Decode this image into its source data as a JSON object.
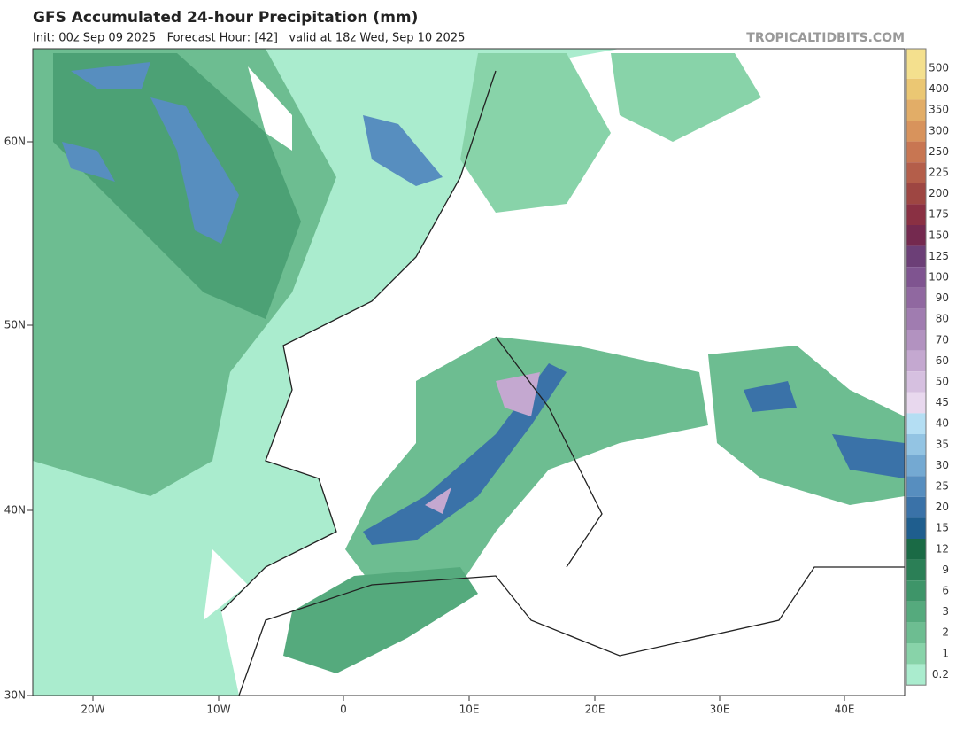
{
  "header": {
    "title": "GFS Accumulated 24-hour Precipitation (mm)",
    "subtitle": "Init: 00z Sep 09 2025   Forecast Hour: [42]   valid at 18z Wed, Sep 10 2025",
    "site": "TROPICALTIDBITS.COM"
  },
  "map": {
    "lat_labels": [
      "60N",
      "50N",
      "40N",
      "30N"
    ],
    "lon_labels": [
      "20W",
      "10W",
      "0",
      "10E",
      "20E",
      "30E",
      "40E"
    ]
  },
  "legend": {
    "levels": [
      {
        "label": "500",
        "color": "#f4e08e"
      },
      {
        "label": "400",
        "color": "#ebc773"
      },
      {
        "label": "350",
        "color": "#e2ad67"
      },
      {
        "label": "300",
        "color": "#d8935c"
      },
      {
        "label": "250",
        "color": "#c87652"
      },
      {
        "label": "225",
        "color": "#b45e4a"
      },
      {
        "label": "200",
        "color": "#9e4642"
      },
      {
        "label": "175",
        "color": "#8a3043"
      },
      {
        "label": "150",
        "color": "#74294f"
      },
      {
        "label": "125",
        "color": "#6c3f77"
      },
      {
        "label": "100",
        "color": "#7f5490"
      },
      {
        "label": "90",
        "color": "#9068a0"
      },
      {
        "label": "80",
        "color": "#a07cb0"
      },
      {
        "label": "70",
        "color": "#b292c0"
      },
      {
        "label": "60",
        "color": "#c4a8d0"
      },
      {
        "label": "50",
        "color": "#d6c0e0"
      },
      {
        "label": "45",
        "color": "#e8d8ee"
      },
      {
        "label": "40",
        "color": "#b4def3"
      },
      {
        "label": "35",
        "color": "#93c4e3"
      },
      {
        "label": "30",
        "color": "#74a9d2"
      },
      {
        "label": "25",
        "color": "#578ebf"
      },
      {
        "label": "20",
        "color": "#3a72a8"
      },
      {
        "label": "15",
        "color": "#1f5e8e"
      },
      {
        "label": "12",
        "color": "#1a6a45"
      },
      {
        "label": "9",
        "color": "#2b7f56"
      },
      {
        "label": "6",
        "color": "#3e9569"
      },
      {
        "label": "3",
        "color": "#55aa7d"
      },
      {
        "label": "2",
        "color": "#6dbd91"
      },
      {
        "label": "1",
        "color": "#88d3a9"
      },
      {
        "label": "0.2",
        "color": "#aaecce"
      }
    ]
  }
}
